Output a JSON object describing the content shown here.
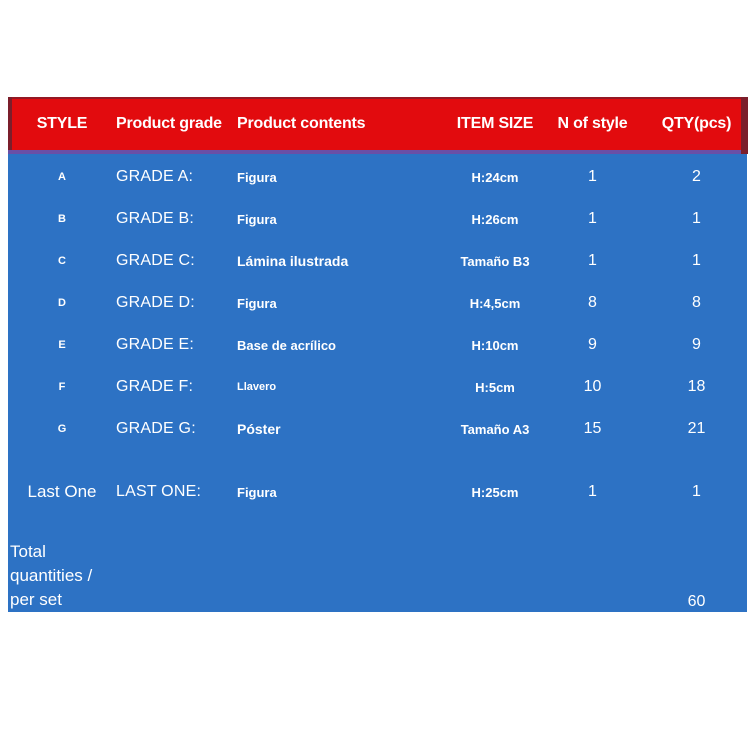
{
  "colors": {
    "header_red": "#e20b0e",
    "border_maroon": "#7b1e2b",
    "separator_purple": "#6a4fa6",
    "body_blue": "#2d72c4",
    "text_white": "#ffffff"
  },
  "table": {
    "columns": [
      "STYLE",
      "Product grade",
      "Product contents",
      "ITEM SIZE",
      "N of style",
      "QTY(pcs)"
    ],
    "rows": [
      {
        "style": "A",
        "grade": "GRADE A:",
        "contents": "Figura",
        "size": "H:24cm",
        "n": "1",
        "qty": "2"
      },
      {
        "style": "B",
        "grade": "GRADE B:",
        "contents": "Figura",
        "size": "H:26cm",
        "n": "1",
        "qty": "1"
      },
      {
        "style": "C",
        "grade": "GRADE C:",
        "contents": "Lámina ilustrada",
        "size": "Tamaño B3",
        "n": "1",
        "qty": "1"
      },
      {
        "style": "D",
        "grade": "GRADE D:",
        "contents": "Figura",
        "size": "H:4,5cm",
        "n": "8",
        "qty": "8"
      },
      {
        "style": "E",
        "grade": "GRADE E:",
        "contents": "Base de acrílico",
        "size": "H:10cm",
        "n": "9",
        "qty": "9"
      },
      {
        "style": "F",
        "grade": "GRADE F:",
        "contents": "Llavero",
        "size": "H:5cm",
        "n": "10",
        "qty": "18"
      },
      {
        "style": "G",
        "grade": "GRADE G:",
        "contents": "Póster",
        "size": "Tamaño A3",
        "n": "15",
        "qty": "21"
      },
      {
        "style": "Last One",
        "grade": "LAST ONE:",
        "contents": "Figura",
        "size": "H:25cm",
        "n": "1",
        "qty": "1"
      }
    ],
    "total": {
      "label_lines": [
        "Total",
        "quantities /",
        "per set"
      ],
      "value": "60"
    }
  }
}
